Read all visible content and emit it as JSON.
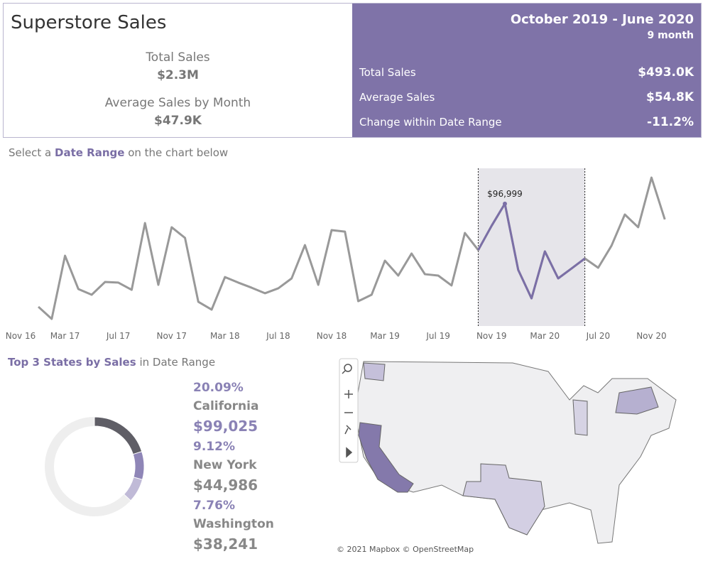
{
  "header": {
    "title": "Superstore Sales",
    "total_sales_label": "Total Sales",
    "total_sales": "$2.3M",
    "avg_label": "Average Sales by Month",
    "avg": "$47.9K"
  },
  "range_panel": {
    "title": "October 2019 - June 2020",
    "months": "9 month",
    "rows": [
      {
        "label": "Total Sales",
        "value": "$493.0K"
      },
      {
        "label": "Average Sales",
        "value": "$54.8K"
      },
      {
        "label": "Change within Date Range",
        "value": "-11.2%"
      }
    ]
  },
  "instruction": {
    "prefix": "Select a",
    "emphasis": "Date Range",
    "suffix": "on the chart below"
  },
  "chart_data": {
    "type": "line",
    "color": "#999999",
    "highlight_color": "#7b6fa6",
    "categories": [
      "Nov 16",
      null,
      null,
      null,
      "Mar 17",
      null,
      null,
      null,
      "Jul 17",
      null,
      null,
      null,
      "Nov 17",
      null,
      null,
      null,
      "Mar 18",
      null,
      null,
      null,
      "Jul 18",
      null,
      null,
      null,
      "Nov 18",
      null,
      null,
      null,
      "Mar 19",
      null,
      null,
      null,
      "Jul 19",
      null,
      null,
      null,
      "Nov 19",
      null,
      null,
      null,
      "Mar 20",
      null,
      null,
      null,
      "Jul 20",
      null,
      null,
      null,
      "Nov 20",
      null
    ],
    "values": [
      null,
      null,
      13800,
      4000,
      55000,
      28100,
      23500,
      33800,
      33300,
      27500,
      81400,
      31500,
      78000,
      69400,
      17800,
      11500,
      37800,
      33300,
      29200,
      24700,
      28700,
      36700,
      63600,
      31500,
      75700,
      74500,
      18300,
      23500,
      51000,
      39000,
      56800,
      40100,
      39000,
      31000,
      73400,
      59600,
      79100,
      96999,
      43600,
      20600,
      58500,
      36700,
      44700,
      52800,
      45300,
      63100,
      88300,
      78000,
      118100,
      84300
    ],
    "value_labels": [
      null,
      null,
      null,
      null,
      null,
      null,
      null,
      null,
      null,
      null,
      null,
      null,
      null,
      null,
      null,
      null,
      null,
      null,
      null,
      null,
      null,
      null,
      null,
      null,
      null,
      null,
      null,
      null,
      null,
      null,
      null,
      null,
      null,
      null,
      null,
      null,
      null,
      "$96,999",
      null,
      null,
      null,
      null,
      null,
      null,
      null,
      null,
      null,
      null,
      null,
      null
    ],
    "ylim": [
      0,
      125000
    ]
  },
  "top_states": {
    "title_emphasis": "Top 3 States by Sales",
    "title_suffix": "in Date Range",
    "colors": [
      "#5f5e66",
      "#8f86b7",
      "#c0bad7"
    ],
    "states": [
      {
        "share": 20.09,
        "share_label": "20.09%",
        "name": "California",
        "sales": "$99,025"
      },
      {
        "share": 9.12,
        "share_label": "9.12%",
        "name": "New York",
        "sales": "$44,986"
      },
      {
        "share": 7.76,
        "share_label": "7.76%",
        "name": "Washington",
        "sales": "$38,241"
      }
    ]
  },
  "map": {
    "attribution": "© 2021 Mapbox © OpenStreetMap"
  }
}
